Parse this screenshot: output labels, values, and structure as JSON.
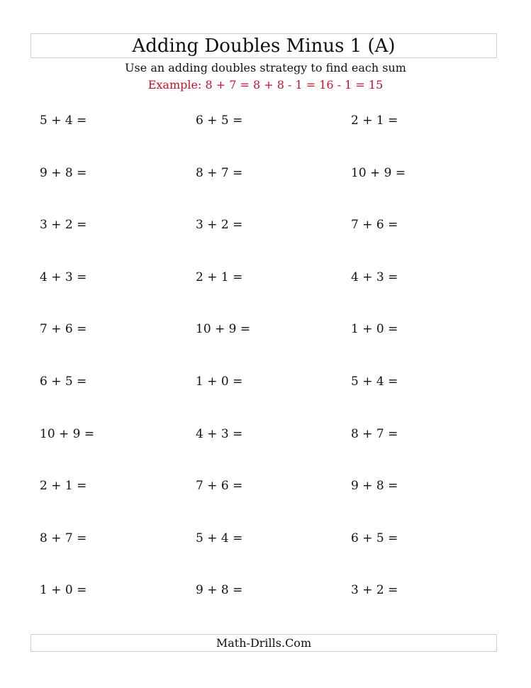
{
  "title": "Adding Doubles Minus 1 (A)",
  "instructions": "Use an adding doubles strategy to find each sum",
  "example": "Example: 8 + 7 = 8 + 8 - 1 = 16 - 1 = 15",
  "example_color": "#c8102e",
  "problems": [
    [
      "5 + 4 =",
      "6 + 5 =",
      "2 + 1 ="
    ],
    [
      "9 + 8 =",
      "8 + 7 =",
      "10 + 9 ="
    ],
    [
      "3 + 2 =",
      "3 + 2 =",
      "7 + 6 ="
    ],
    [
      "4 + 3 =",
      "2 + 1 =",
      "4 + 3 ="
    ],
    [
      "7 + 6 =",
      "10 + 9 =",
      "1 + 0 ="
    ],
    [
      "6 + 5 =",
      "1 + 0 =",
      "5 + 4 ="
    ],
    [
      "10 + 9 =",
      "4 + 3 =",
      "8 + 7 ="
    ],
    [
      "2 + 1 =",
      "7 + 6 =",
      "9 + 8 ="
    ],
    [
      "8 + 7 =",
      "5 + 4 =",
      "6 + 5 ="
    ],
    [
      "1 + 0 =",
      "9 + 8 =",
      "3 + 2 ="
    ]
  ],
  "footer": "Math-Drills.Com"
}
